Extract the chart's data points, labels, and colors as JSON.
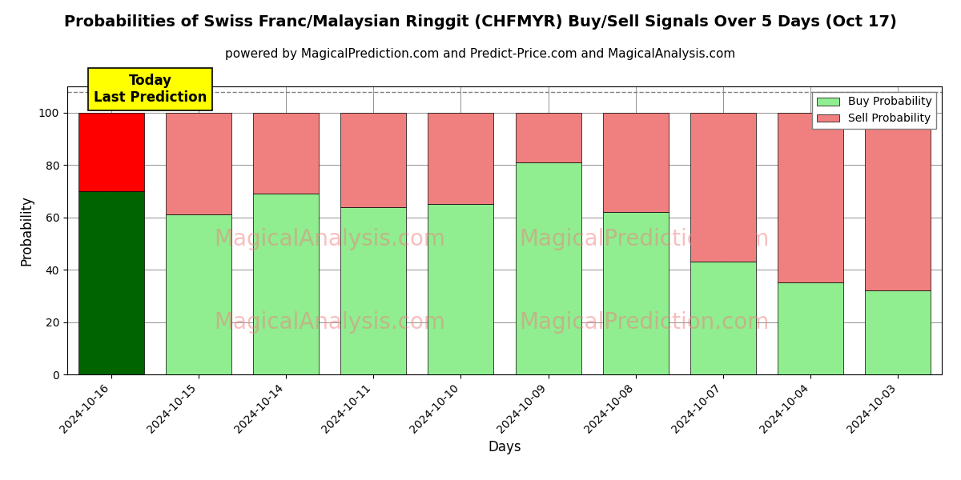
{
  "title": "Probabilities of Swiss Franc/Malaysian Ringgit (CHFMYR) Buy/Sell Signals Over 5 Days (Oct 17)",
  "subtitle": "powered by MagicalPrediction.com and Predict-Price.com and MagicalAnalysis.com",
  "xlabel": "Days",
  "ylabel": "Probability",
  "categories": [
    "2024-10-16",
    "2024-10-15",
    "2024-10-14",
    "2024-10-11",
    "2024-10-10",
    "2024-10-09",
    "2024-10-08",
    "2024-10-07",
    "2024-10-04",
    "2024-10-03"
  ],
  "buy_values": [
    70,
    61,
    69,
    64,
    65,
    81,
    62,
    43,
    35,
    32
  ],
  "sell_values": [
    30,
    39,
    31,
    36,
    35,
    19,
    38,
    57,
    65,
    68
  ],
  "today_index": 0,
  "today_buy_color": "#006400",
  "today_sell_color": "#ff0000",
  "normal_buy_color": "#90EE90",
  "normal_sell_color": "#F08080",
  "today_label_bg": "#ffff00",
  "today_label_text": "Today\nLast Prediction",
  "legend_buy_label": "Buy Probability",
  "legend_sell_label": "Sell Probability",
  "ylim": [
    0,
    110
  ],
  "yticks": [
    0,
    20,
    40,
    60,
    80,
    100
  ],
  "dashed_line_y": 108,
  "bar_width": 0.75,
  "title_fontsize": 14,
  "subtitle_fontsize": 11,
  "axis_label_fontsize": 12,
  "tick_label_fontsize": 10,
  "legend_fontsize": 10
}
